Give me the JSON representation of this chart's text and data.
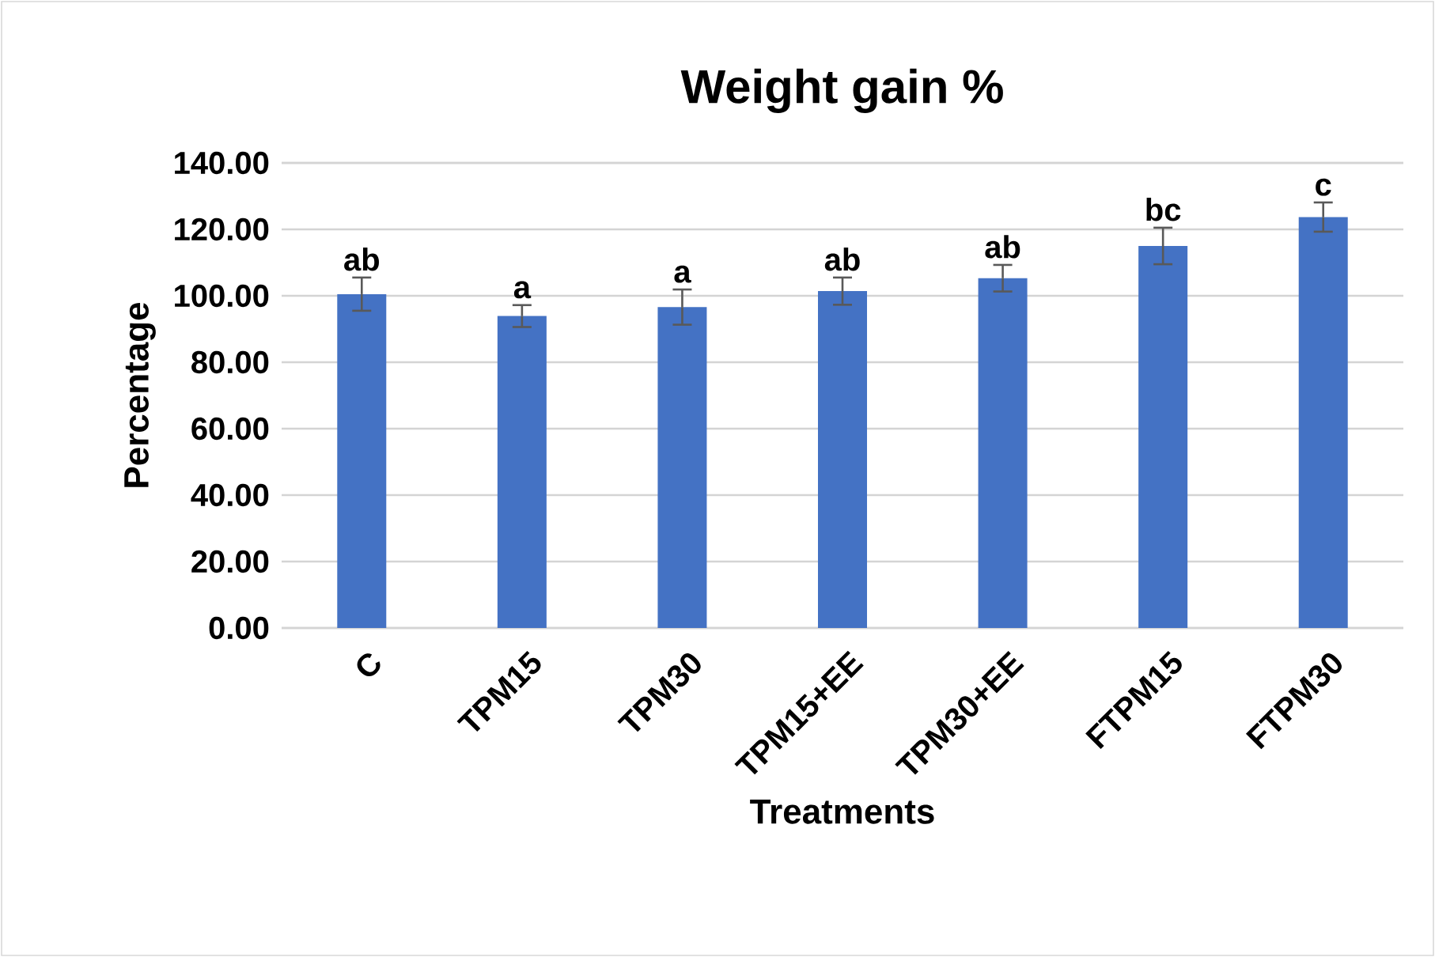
{
  "chart_data": {
    "type": "bar",
    "title": "Weight gain %",
    "xlabel": "Treatments",
    "ylabel": "Percentage",
    "categories": [
      "C",
      "TPM15",
      "TPM30",
      "TPM15+EE",
      "TPM30+EE",
      "FTPM15",
      "FTPM30"
    ],
    "values": [
      100.5,
      93.9,
      96.6,
      101.4,
      105.3,
      115.0,
      123.7
    ],
    "errors": [
      5.0,
      3.3,
      5.3,
      4.1,
      4.0,
      5.5,
      4.4
    ],
    "color": "#4472c4",
    "ylim": [
      0,
      140
    ],
    "yticks": [
      {
        "value": 0,
        "label": "0.00"
      },
      {
        "value": 20,
        "label": "20.00"
      },
      {
        "value": 40,
        "label": "40.00"
      },
      {
        "value": 60,
        "label": "60.00"
      },
      {
        "value": 80,
        "label": "80.00"
      },
      {
        "value": 100,
        "label": "100.00"
      },
      {
        "value": 120,
        "label": "120.00"
      },
      {
        "value": 140,
        "label": "140.00"
      }
    ],
    "grid": "y",
    "annotations": [
      {
        "text": "ab",
        "x": "C",
        "y": 105.5
      },
      {
        "text": "a",
        "x": "TPM15",
        "y": 97.2
      },
      {
        "text": "a",
        "x": "TPM30",
        "y": 101.9
      },
      {
        "text": "ab",
        "x": "TPM15+EE",
        "y": 105.5
      },
      {
        "text": "ab",
        "x": "TPM30+EE",
        "y": 109.3
      },
      {
        "text": "bc",
        "x": "FTPM15",
        "y": 120.5
      },
      {
        "text": "c",
        "x": "FTPM30",
        "y": 128.1
      }
    ]
  }
}
